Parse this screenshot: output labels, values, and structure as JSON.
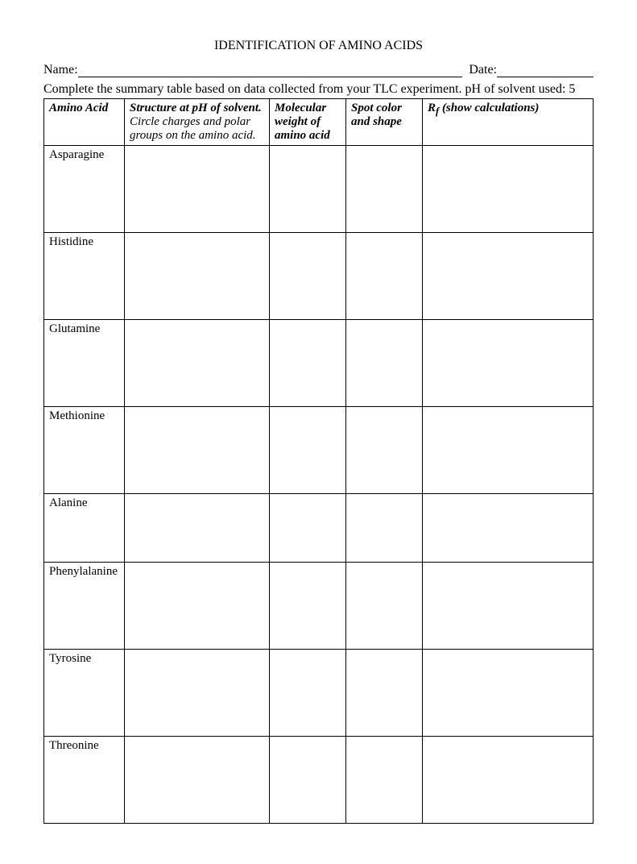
{
  "title": "IDENTIFICATION OF AMINO ACIDS",
  "fields": {
    "name_label": "Name:",
    "date_label": " Date:"
  },
  "instruction": "Complete the summary table based on data collected from your TLC experiment. pH of solvent used: 5",
  "table": {
    "headers": {
      "amino": "Amino Acid",
      "structure_main": "Structure at pH of solvent.",
      "structure_sub": "Circle charges and polar groups on the amino acid.",
      "mw": "Molecular weight of amino acid",
      "spot": "Spot color and shape",
      "rf_prefix": "R",
      "rf_sub": "f",
      "rf_rest": "  (show calculations)"
    },
    "rows": [
      {
        "name": "Asparagine"
      },
      {
        "name": "Histidine"
      },
      {
        "name": "Glutamine"
      },
      {
        "name": "Methionine"
      },
      {
        "name": "Alanine",
        "short": true
      },
      {
        "name": "Phenylalanine"
      },
      {
        "name": "Tyrosine"
      },
      {
        "name": "Threonine"
      }
    ]
  },
  "colors": {
    "text": "#000000",
    "background": "#ffffff",
    "border": "#000000"
  }
}
